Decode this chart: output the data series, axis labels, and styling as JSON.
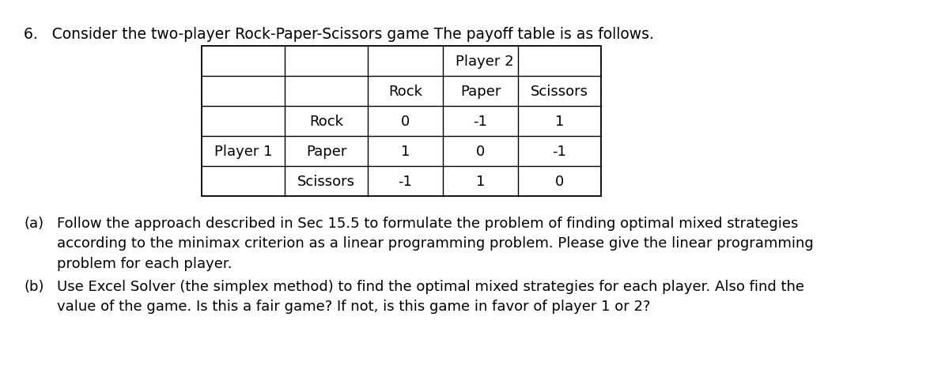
{
  "title_number": "6.",
  "title_text": "Consider the two-player Rock-Paper-Scissors game The payoff table is as follows.",
  "player2_label": "Player 2",
  "player1_label": "Player 1",
  "col_headers": [
    "Rock",
    "Paper",
    "Scissors"
  ],
  "row_headers": [
    "Rock",
    "Paper",
    "Scissors"
  ],
  "payoff_matrix": [
    [
      "0",
      "-1",
      "1"
    ],
    [
      "1",
      "0",
      "-1"
    ],
    [
      "-1",
      "1",
      "0"
    ]
  ],
  "part_a_label": "(a)",
  "part_a_line1": "Follow the approach described in Sec 15.5 to formulate the problem of finding optimal mixed strategies",
  "part_a_line2": "according to the minimax criterion as a linear programming problem. Please give the linear programming",
  "part_a_line3": "problem for each player.",
  "part_b_label": "(b)",
  "part_b_line1": "Use Excel Solver (the simplex method) to find the optimal mixed strategies for each player. Also find the",
  "part_b_line2": "value of the game. Is this a fair game? If not, is this game in favor of player 1 or 2?",
  "background_color": "#ffffff",
  "text_color": "#000000",
  "font_size_title": 13.5,
  "font_size_table": 13.0,
  "font_size_body": 13.0,
  "fig_width": 12.0,
  "fig_height": 4.64,
  "dpi": 100
}
